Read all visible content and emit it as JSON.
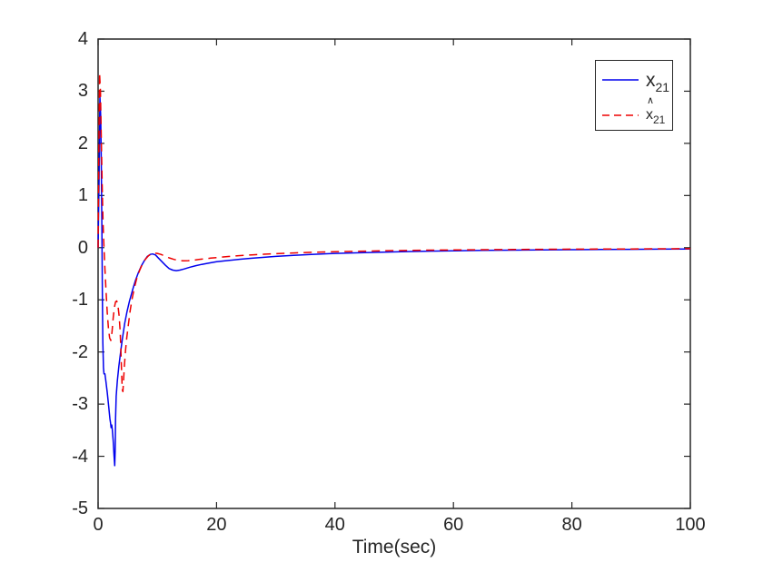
{
  "chart_data": {
    "type": "line",
    "title": "",
    "xlabel": "Time(sec)",
    "ylabel": "",
    "xlim": [
      0,
      100
    ],
    "ylim": [
      -5,
      4
    ],
    "xticks": [
      0,
      20,
      40,
      60,
      80,
      100
    ],
    "yticks": [
      -5,
      -4,
      -3,
      -2,
      -1,
      0,
      1,
      2,
      3,
      4
    ],
    "grid": false,
    "legend_position": "top-right-inside",
    "axis_color": "#262626",
    "background": "#ffffff",
    "series": [
      {
        "id": "x21",
        "name": "x_21",
        "color": "#0000EE",
        "style": "solid",
        "points": [
          [
            0,
            0
          ],
          [
            0.15,
            1.2
          ],
          [
            0.3,
            2.9
          ],
          [
            0.45,
            2.5
          ],
          [
            0.55,
            1.5
          ],
          [
            0.65,
            0.3
          ],
          [
            0.72,
            -0.9
          ],
          [
            0.8,
            -1.8
          ],
          [
            0.9,
            -2.3
          ],
          [
            1.0,
            -2.42
          ],
          [
            1.15,
            -2.42
          ],
          [
            1.3,
            -2.55
          ],
          [
            1.55,
            -2.78
          ],
          [
            1.8,
            -3.05
          ],
          [
            2.0,
            -3.28
          ],
          [
            2.1,
            -3.36
          ],
          [
            2.2,
            -3.45
          ],
          [
            2.3,
            -3.4
          ],
          [
            2.4,
            -3.48
          ],
          [
            2.55,
            -3.7
          ],
          [
            2.7,
            -4.0
          ],
          [
            2.8,
            -4.18
          ],
          [
            2.88,
            -3.9
          ],
          [
            2.95,
            -3.3
          ],
          [
            3.05,
            -2.85
          ],
          [
            3.25,
            -2.55
          ],
          [
            3.5,
            -2.28
          ],
          [
            3.8,
            -2.0
          ],
          [
            4.1,
            -1.75
          ],
          [
            4.5,
            -1.45
          ],
          [
            4.9,
            -1.22
          ],
          [
            5.3,
            -1.02
          ],
          [
            5.8,
            -0.82
          ],
          [
            6.3,
            -0.63
          ],
          [
            6.8,
            -0.48
          ],
          [
            7.3,
            -0.35
          ],
          [
            7.8,
            -0.25
          ],
          [
            8.3,
            -0.17
          ],
          [
            8.8,
            -0.13
          ],
          [
            9.2,
            -0.12
          ],
          [
            9.7,
            -0.14
          ],
          [
            10.2,
            -0.2
          ],
          [
            10.8,
            -0.27
          ],
          [
            11.4,
            -0.34
          ],
          [
            12,
            -0.4
          ],
          [
            12.6,
            -0.43
          ],
          [
            13.2,
            -0.44
          ],
          [
            13.8,
            -0.43
          ],
          [
            14.5,
            -0.41
          ],
          [
            15.5,
            -0.375
          ],
          [
            16.5,
            -0.345
          ],
          [
            17.5,
            -0.32
          ],
          [
            18.5,
            -0.3
          ],
          [
            20,
            -0.27
          ],
          [
            22,
            -0.245
          ],
          [
            24,
            -0.222
          ],
          [
            26,
            -0.202
          ],
          [
            28,
            -0.185
          ],
          [
            30,
            -0.168
          ],
          [
            33,
            -0.148
          ],
          [
            36,
            -0.13
          ],
          [
            39,
            -0.116
          ],
          [
            42,
            -0.104
          ],
          [
            45,
            -0.094
          ],
          [
            48,
            -0.085
          ],
          [
            52,
            -0.075
          ],
          [
            56,
            -0.067
          ],
          [
            60,
            -0.06
          ],
          [
            65,
            -0.053
          ],
          [
            70,
            -0.047
          ],
          [
            75,
            -0.042
          ],
          [
            80,
            -0.038
          ],
          [
            85,
            -0.034
          ],
          [
            90,
            -0.031
          ],
          [
            95,
            -0.028
          ],
          [
            100,
            -0.026
          ]
        ]
      },
      {
        "id": "x21-hat",
        "name": "x_21 estimate (hat)",
        "color": "#EE0000",
        "style": "dashed",
        "points": [
          [
            0,
            0
          ],
          [
            0.1,
            1.5
          ],
          [
            0.25,
            3.35
          ],
          [
            0.4,
            3.0
          ],
          [
            0.55,
            2.0
          ],
          [
            0.7,
            1.1
          ],
          [
            0.85,
            0.45
          ],
          [
            1.0,
            0.0
          ],
          [
            1.15,
            -0.4
          ],
          [
            1.35,
            -0.85
          ],
          [
            1.55,
            -1.25
          ],
          [
            1.75,
            -1.55
          ],
          [
            1.95,
            -1.73
          ],
          [
            2.15,
            -1.78
          ],
          [
            2.35,
            -1.62
          ],
          [
            2.55,
            -1.35
          ],
          [
            2.75,
            -1.15
          ],
          [
            2.95,
            -1.04
          ],
          [
            3.15,
            -1.02
          ],
          [
            3.35,
            -1.1
          ],
          [
            3.55,
            -1.3
          ],
          [
            3.72,
            -1.6
          ],
          [
            3.85,
            -1.98
          ],
          [
            3.98,
            -2.4
          ],
          [
            4.08,
            -2.72
          ],
          [
            4.18,
            -2.76
          ],
          [
            4.3,
            -2.55
          ],
          [
            4.45,
            -2.25
          ],
          [
            4.65,
            -1.95
          ],
          [
            4.85,
            -1.72
          ],
          [
            5.1,
            -1.48
          ],
          [
            5.4,
            -1.22
          ],
          [
            5.7,
            -1.0
          ],
          [
            6.1,
            -0.78
          ],
          [
            6.5,
            -0.6
          ],
          [
            7,
            -0.44
          ],
          [
            7.5,
            -0.31
          ],
          [
            8,
            -0.22
          ],
          [
            8.5,
            -0.155
          ],
          [
            9,
            -0.12
          ],
          [
            9.5,
            -0.105
          ],
          [
            10,
            -0.11
          ],
          [
            10.6,
            -0.13
          ],
          [
            11.3,
            -0.16
          ],
          [
            12,
            -0.195
          ],
          [
            12.8,
            -0.225
          ],
          [
            13.6,
            -0.245
          ],
          [
            14.4,
            -0.252
          ],
          [
            15.2,
            -0.25
          ],
          [
            16,
            -0.24
          ],
          [
            17,
            -0.226
          ],
          [
            18,
            -0.212
          ],
          [
            19,
            -0.2
          ],
          [
            20,
            -0.19
          ],
          [
            22,
            -0.17
          ],
          [
            24,
            -0.152
          ],
          [
            26,
            -0.138
          ],
          [
            28,
            -0.126
          ],
          [
            30,
            -0.115
          ],
          [
            33,
            -0.102
          ],
          [
            36,
            -0.09
          ],
          [
            39,
            -0.081
          ],
          [
            42,
            -0.073
          ],
          [
            45,
            -0.066
          ],
          [
            48,
            -0.06
          ],
          [
            52,
            -0.054
          ],
          [
            56,
            -0.048
          ],
          [
            60,
            -0.044
          ],
          [
            65,
            -0.039
          ],
          [
            70,
            -0.035
          ],
          [
            75,
            -0.031
          ],
          [
            80,
            -0.028
          ],
          [
            85,
            -0.026
          ],
          [
            90,
            -0.024
          ],
          [
            95,
            -0.022
          ],
          [
            100,
            -0.02
          ]
        ]
      }
    ]
  },
  "legend": {
    "entries": [
      {
        "base": "x",
        "sub": "21",
        "hat": ""
      },
      {
        "base": "x",
        "sub": "21",
        "hat": "∧"
      }
    ]
  }
}
